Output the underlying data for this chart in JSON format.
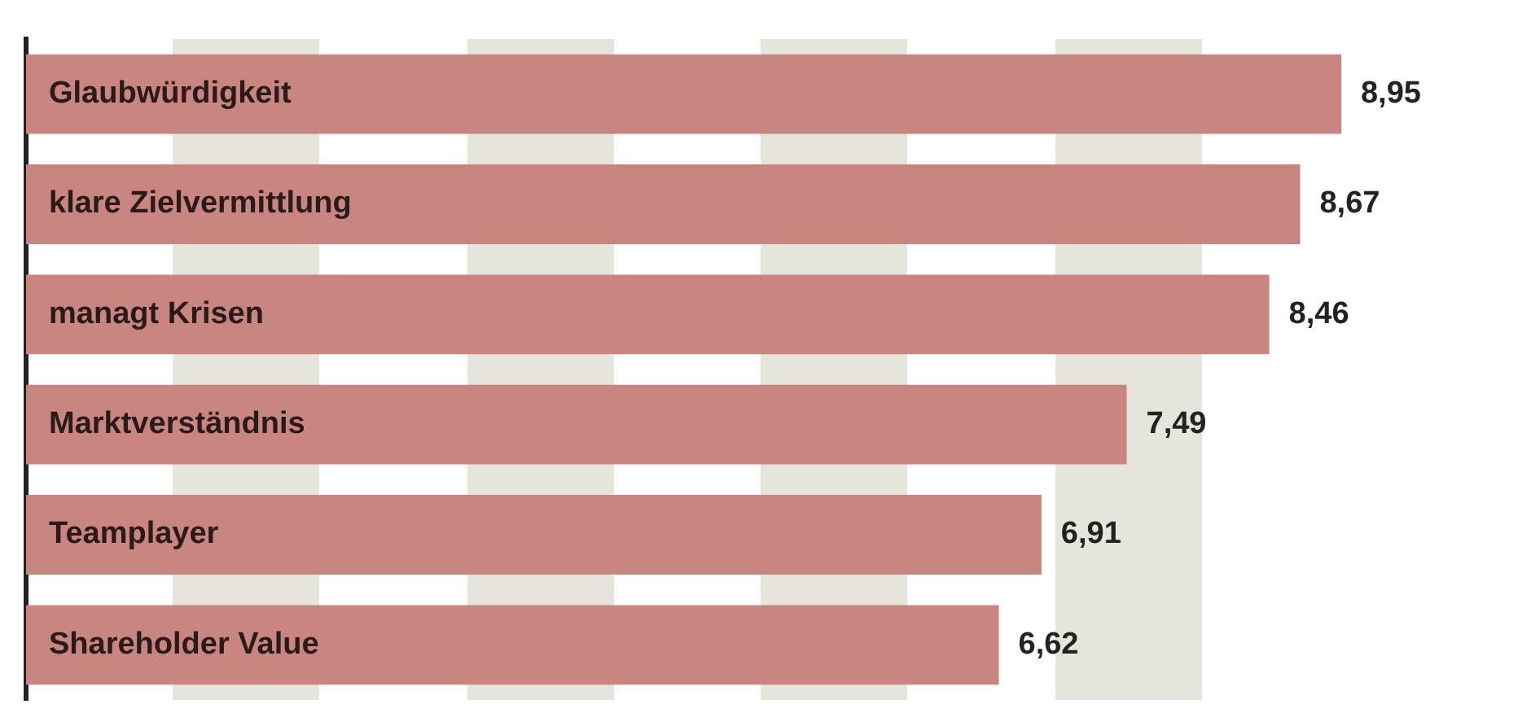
{
  "chart_data": {
    "type": "bar",
    "orientation": "horizontal",
    "categories": [
      "Glaubwürdigkeit",
      "klare Zielvermittlung",
      "managt Krisen",
      "Marktverständnis",
      "Teamplayer",
      "Shareholder Value"
    ],
    "values": [
      8.95,
      8.67,
      8.46,
      7.49,
      6.91,
      6.62
    ],
    "value_labels": [
      "8,95",
      "8,67",
      "8,46",
      "7,49",
      "6,91",
      "6,62"
    ],
    "color": "#c98680",
    "legend": false
  }
}
